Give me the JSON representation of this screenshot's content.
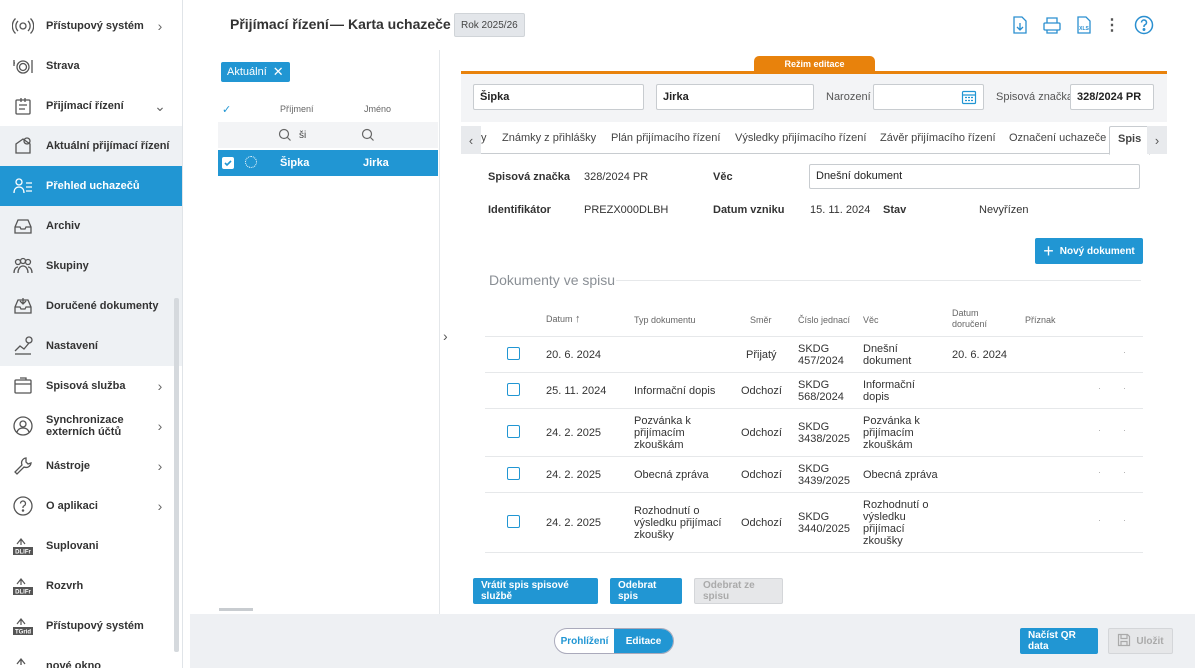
{
  "sidebar": {
    "items": [
      {
        "label": "Přístupový systém"
      },
      {
        "label": "Strava"
      },
      {
        "label": "Přijímací řízení"
      },
      {
        "label": "Aktuální přijímací řízení"
      },
      {
        "label": "Přehled uchazečů"
      },
      {
        "label": "Archiv"
      },
      {
        "label": "Skupiny"
      },
      {
        "label": "Doručené dokumenty"
      },
      {
        "label": "Nastavení"
      },
      {
        "label": "Spisová služba"
      },
      {
        "label": "Synchronizace externích účtů"
      },
      {
        "label": "Nástroje"
      },
      {
        "label": "O aplikaci"
      },
      {
        "label": "Suplovani"
      },
      {
        "label": "Rozvrh"
      },
      {
        "label": "Přístupový systém"
      },
      {
        "label": "nové okno"
      }
    ]
  },
  "header": {
    "title": "Přijímací řízení",
    "separator": "—",
    "subtitle": "Karta uchazeče",
    "year_badge": "Rok 2025/26",
    "tools": [
      "download-icon",
      "print-icon",
      "export-xls-icon",
      "more-icon",
      "help-icon"
    ]
  },
  "list": {
    "filter_chip": "Aktuální",
    "col_surname": "Příjmení",
    "col_name": "Jméno",
    "filter_surname": "ši",
    "selected_row": {
      "surname": "Šipka",
      "name": "Jirka"
    }
  },
  "form": {
    "edit_mode_label": "Režim editace",
    "surname": "Šipka",
    "name": "Jirka",
    "birth_label": "Narození",
    "birth_value": "",
    "file_no_label": "Spisová značka",
    "file_no_value": "328/2024 PR"
  },
  "tabs": [
    "y",
    "Známky z přihlášky",
    "Plán přijímacího řízení",
    "Výsledky přijímacího řízení",
    "Závěr přijímacího řízení",
    "Označení uchazeče",
    "Spis"
  ],
  "spis": {
    "file_no_label": "Spisová značka",
    "file_no_value": "328/2024 PR",
    "subject_label": "Věc",
    "subject_value": "Dnešní dokument",
    "id_label": "Identifikátor",
    "id_value": "PREZX000DLBH",
    "created_label": "Datum vzniku",
    "created_value": "15. 11. 2024",
    "state_label": "Stav",
    "state_value": "Nevyřízen",
    "new_doc_button": "Nový dokument"
  },
  "documents": {
    "section_title": "Dokumenty ve spisu",
    "columns": {
      "date": "Datum",
      "type": "Typ dokumentu",
      "direction": "Směr",
      "ref_no": "Číslo jednací",
      "subject": "Věc",
      "delivered": "Datum doručení",
      "flag": "Příznak"
    },
    "rows": [
      {
        "date": "20. 6. 2024",
        "type": "",
        "direction": "Přijatý",
        "ref_no": "SKDG 457/2024",
        "subject": "Dnešní dokument",
        "delivered": "20. 6. 2024"
      },
      {
        "date": "25. 11. 2024",
        "type": "Informační dopis",
        "direction": "Odchozí",
        "ref_no": "SKDG 568/2024",
        "subject": "Informační dopis",
        "delivered": ""
      },
      {
        "date": "24. 2. 2025",
        "type": "Pozvánka k přijímacím zkouškám",
        "direction": "Odchozí",
        "ref_no": "SKDG 3438/2025",
        "subject": "Pozvánka k přijímacím zkouškám",
        "delivered": ""
      },
      {
        "date": "24. 2. 2025",
        "type": "Obecná zpráva",
        "direction": "Odchozí",
        "ref_no": "SKDG 3439/2025",
        "subject": "Obecná zpráva",
        "delivered": ""
      },
      {
        "date": "24. 2. 2025",
        "type": "Rozhodnutí o výsledku přijímací zkoušky",
        "direction": "Odchozí",
        "ref_no": "SKDG 3440/2025",
        "subject": "Rozhodnutí o výsledku přijímací zkoušky",
        "delivered": ""
      }
    ],
    "buttons": {
      "return": "Vrátit spis spisové službě",
      "remove": "Odebrat spis",
      "remove_from": "Odebrat ze spisu"
    }
  },
  "footer": {
    "view_mode": "Prohlížení",
    "edit_mode": "Editace",
    "qr_button": "Načíst QR data",
    "save_button": "Uložit"
  }
}
